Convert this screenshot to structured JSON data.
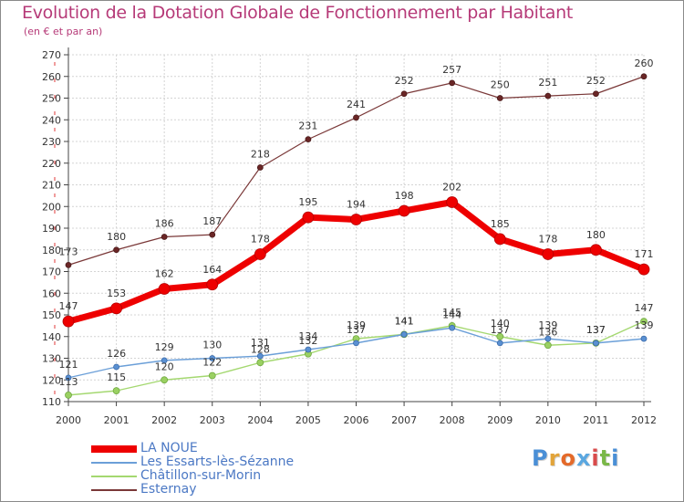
{
  "title": "Evolution de la Dotation Globale de Fonctionnement par Habitant",
  "subtitle": "(en € et par an)",
  "logo": {
    "text": "Proxiti",
    "colors": [
      "#4a8fd6",
      "#e2a43a",
      "#e46a2a",
      "#5aa7e0",
      "#d94b4b",
      "#7ab848",
      "#4a8fd6"
    ]
  },
  "chart_data": {
    "type": "line",
    "x": [
      "2000",
      "2001",
      "2002",
      "2003",
      "2004",
      "2005",
      "2006",
      "2007",
      "2008",
      "2009",
      "2010",
      "2011",
      "2012"
    ],
    "ylim": [
      110,
      270
    ],
    "yticks": [
      "110",
      "120",
      "130",
      "140",
      "150",
      "160",
      "170",
      "180",
      "190",
      "200",
      "210",
      "220",
      "230",
      "240",
      "250",
      "260",
      "270"
    ],
    "grid": true,
    "legend_position": "bottom-left",
    "series": [
      {
        "name": "LA NOUE",
        "color": "#ee0000",
        "values": [
          147,
          153,
          162,
          164,
          178,
          195,
          194,
          198,
          202,
          185,
          178,
          180,
          171
        ]
      },
      {
        "name": "Les Essarts-lès-Sézanne",
        "color": "#6b9fd8",
        "values": [
          121,
          126,
          129,
          130,
          131,
          134,
          137,
          141,
          144,
          137,
          139,
          137,
          139
        ]
      },
      {
        "name": "Châtillon-sur-Morin",
        "color": "#a4d870",
        "values": [
          113,
          115,
          120,
          122,
          128,
          132,
          139,
          141,
          145,
          140,
          136,
          137,
          147
        ]
      },
      {
        "name": "Esternay",
        "color": "#7a3838",
        "values": [
          173,
          180,
          186,
          187,
          218,
          231,
          241,
          252,
          257,
          250,
          251,
          252,
          260
        ]
      }
    ]
  }
}
